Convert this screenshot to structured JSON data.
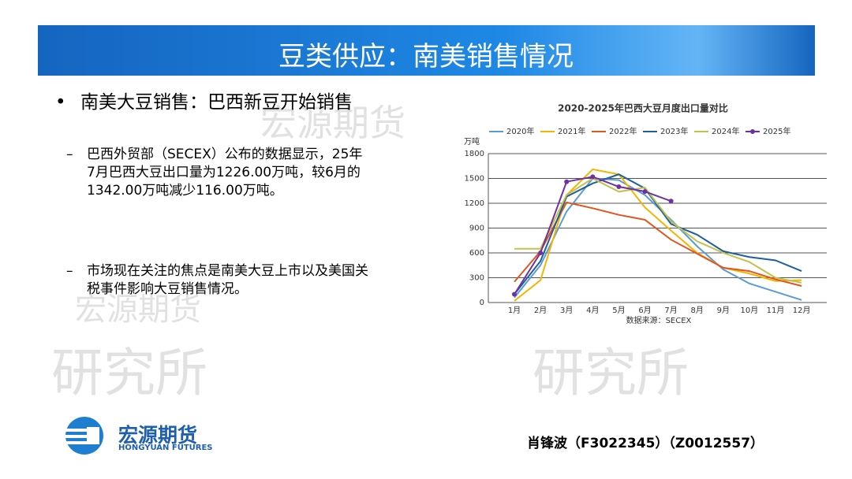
{
  "header": {
    "title": "豆类供应：南美销售情况"
  },
  "bullets": [
    {
      "text": "南美大豆销售：巴西新豆开始销售",
      "sub": [
        "巴西外贸部（SECEX）公布的数据显示，25年7月巴西大豆出口量为1226.00万吨，较6月的1342.00万吨减少116.00万吨。",
        "市场现在关注的焦点是南美大豆上市以及美国关税事件影响大豆销售情况。"
      ]
    }
  ],
  "chart_data": {
    "type": "line",
    "title": "2020-2025年巴西大豆月度出口量对比",
    "y_label": "万吨",
    "source": "数据来源：SECEX",
    "categories": [
      "1月",
      "2月",
      "3月",
      "4月",
      "5月",
      "6月",
      "7月",
      "8月",
      "9月",
      "10月",
      "11月",
      "12月"
    ],
    "series": [
      {
        "name": "2020年",
        "color": "#5b9bd5",
        "values": [
          60,
          450,
          1100,
          1500,
          1480,
          1300,
          1000,
          680,
          400,
          230,
          130,
          30
        ]
      },
      {
        "name": "2021年",
        "color": "#f5b400",
        "values": [
          20,
          270,
          1300,
          1610,
          1550,
          1150,
          870,
          600,
          420,
          350,
          260,
          270
        ]
      },
      {
        "name": "2022年",
        "color": "#e0561f",
        "values": [
          250,
          620,
          1210,
          1140,
          1060,
          1000,
          760,
          590,
          420,
          380,
          280,
          200
        ]
      },
      {
        "name": "2023年",
        "color": "#1f5fa0",
        "values": [
          100,
          500,
          1280,
          1440,
          1550,
          1380,
          950,
          820,
          620,
          550,
          510,
          380
        ]
      },
      {
        "name": "2024年",
        "color": "#c2c24a",
        "values": [
          650,
          650,
          1300,
          1500,
          1340,
          1390,
          980,
          740,
          600,
          490,
          300,
          240
        ]
      },
      {
        "name": "2025年",
        "color": "#7030a0",
        "markers": true,
        "values": [
          100,
          600,
          1460,
          1520,
          1400,
          1342,
          1226,
          null,
          null,
          null,
          null,
          null
        ]
      }
    ],
    "ylim": [
      0,
      1800
    ],
    "yticks": [
      0,
      300,
      600,
      900,
      1200,
      1500,
      1800
    ],
    "grid": true
  },
  "watermarks": [
    "宏源期货",
    "宏源期货",
    "研究所",
    "研究所"
  ],
  "logo": {
    "name": "宏源期货",
    "english": "HONGYUAN FUTURES"
  },
  "author": "肖锋波（F3022345）（Z0012557）"
}
